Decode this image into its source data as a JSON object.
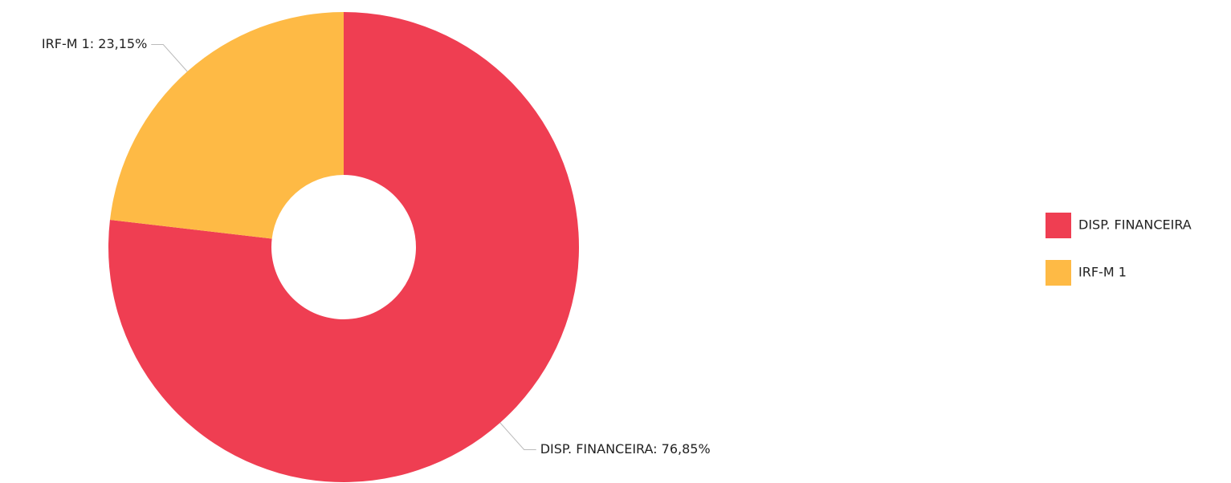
{
  "chart_data": {
    "type": "donut",
    "categories": [
      "DISP. FINANCEIRA",
      "IRF-M 1"
    ],
    "values": [
      76.85,
      23.15
    ],
    "value_labels": [
      "DISP. FINANCEIRA: 76,85%",
      "IRF-M 1: 23,15%"
    ],
    "colors": [
      "#ef3e52",
      "#feba45"
    ],
    "legend": "right"
  }
}
